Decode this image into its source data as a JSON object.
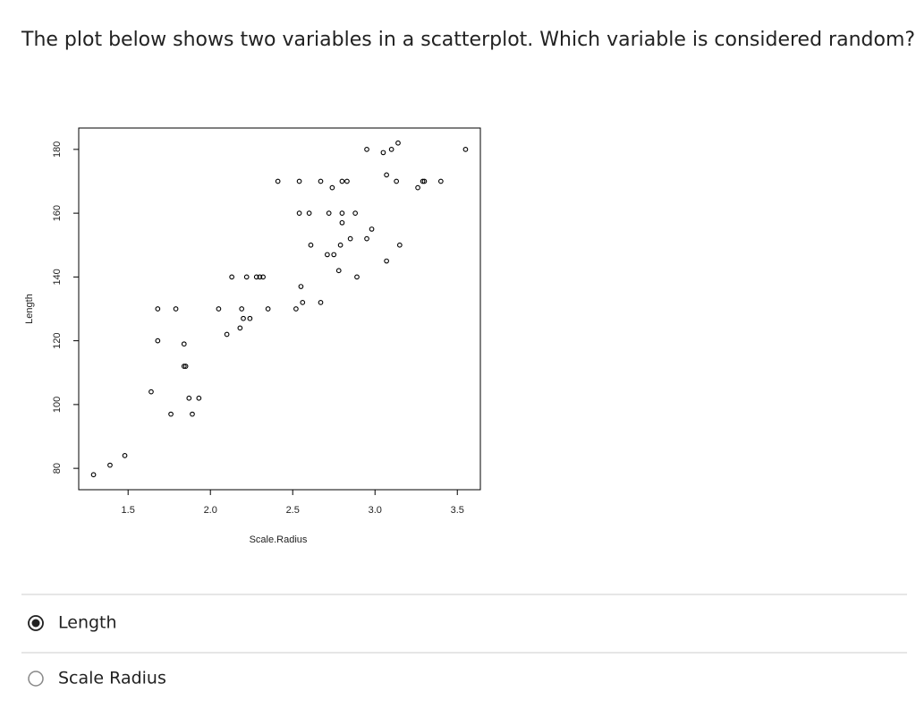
{
  "question": "The plot below shows two variables in a scatterplot. Which variable is considered random?",
  "chart_data": {
    "type": "scatter",
    "x_label": "Scale.Radius",
    "y_label": "Length",
    "color": "#000000",
    "x": [
      1.29,
      1.39,
      1.48,
      1.64,
      1.68,
      1.68,
      1.76,
      1.79,
      1.84,
      1.84,
      1.85,
      1.87,
      1.89,
      1.93,
      2.05,
      2.1,
      2.13,
      2.18,
      2.19,
      2.2,
      2.24,
      2.22,
      2.28,
      2.3,
      2.32,
      2.35,
      2.41,
      2.52,
      2.54,
      2.54,
      2.55,
      2.56,
      2.6,
      2.61,
      2.67,
      2.67,
      2.72,
      2.71,
      2.74,
      2.75,
      2.78,
      2.79,
      2.8,
      2.8,
      2.8,
      2.83,
      2.85,
      2.88,
      2.89,
      2.95,
      2.95,
      2.98,
      3.05,
      3.07,
      3.07,
      3.1,
      3.13,
      3.14,
      3.15,
      3.26,
      3.29,
      3.3,
      3.4,
      3.55
    ],
    "y": [
      78,
      81,
      84,
      104,
      130,
      120,
      97,
      130,
      119,
      112,
      112,
      102,
      97,
      102,
      130,
      122,
      140,
      124,
      130,
      127,
      127,
      140,
      140,
      140,
      140,
      130,
      170,
      130,
      170,
      160,
      137,
      132,
      160,
      150,
      170,
      132,
      160,
      147,
      168,
      147,
      142,
      150,
      170,
      160,
      157,
      170,
      152,
      160,
      140,
      152,
      180,
      155,
      179,
      172,
      145,
      180,
      170,
      182,
      150,
      168,
      170,
      170,
      170,
      180
    ],
    "xlim": [
      1.2,
      3.64
    ],
    "ylim": [
      73.3,
      186.7
    ],
    "xticks": [
      1.5,
      {
        "value": 2,
        "label": "2.0"
      },
      2.5,
      {
        "value": 3,
        "label": "3.0"
      },
      3.5
    ],
    "yticks": [
      80,
      100,
      120,
      140,
      160,
      180
    ]
  },
  "options": [
    {
      "label": "Length",
      "selected": true
    },
    {
      "label": "Scale Radius",
      "selected": false
    }
  ]
}
